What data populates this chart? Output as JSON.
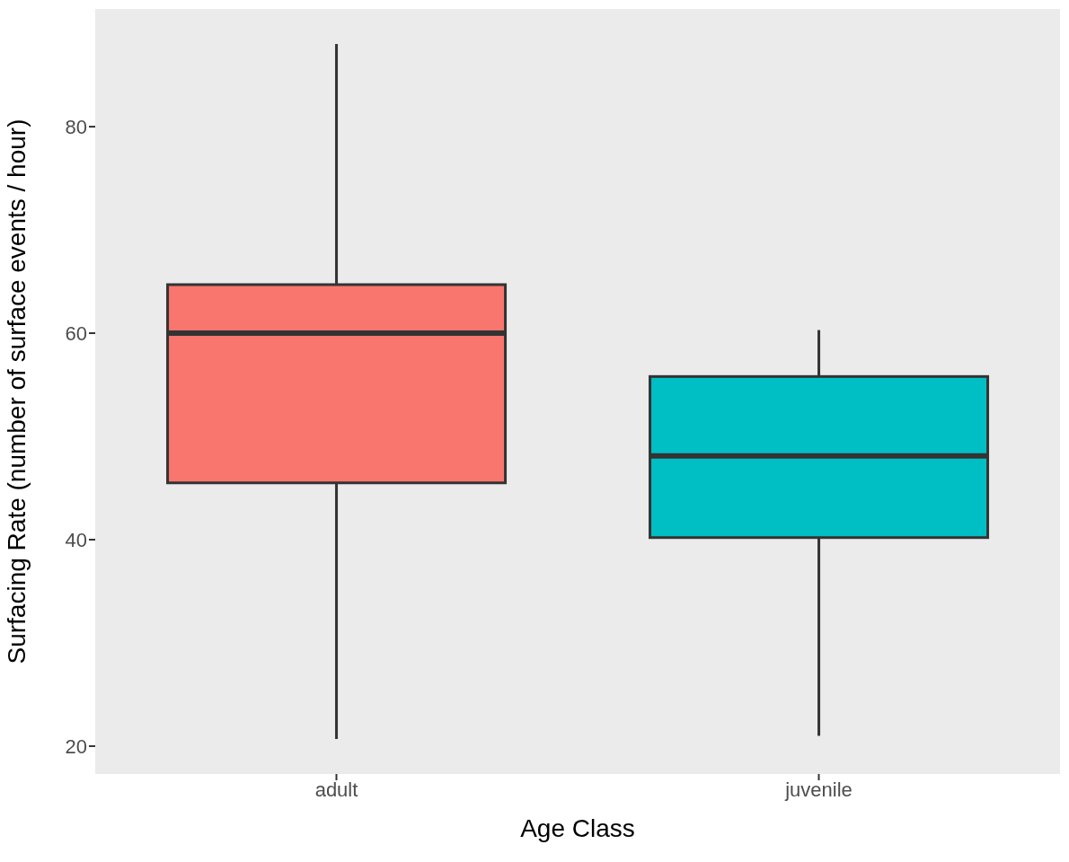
{
  "chart_data": {
    "type": "box",
    "xlabel": "Age Class",
    "ylabel": "Surfacing Rate (number of surface events / hour)",
    "categories": [
      "adult",
      "juvenile"
    ],
    "colors": [
      "#f8766d",
      "#00bfc4"
    ],
    "boxes": [
      {
        "low": 20.7,
        "q1": 45.5,
        "median": 60,
        "q3": 64.7,
        "high": 88
      },
      {
        "low": 21,
        "q1": 40.2,
        "median": 48.1,
        "q3": 55.8,
        "high": 60.3
      }
    ],
    "ylim": [
      17.3,
      91.4
    ],
    "yticks": [
      20,
      40,
      60,
      80
    ]
  }
}
